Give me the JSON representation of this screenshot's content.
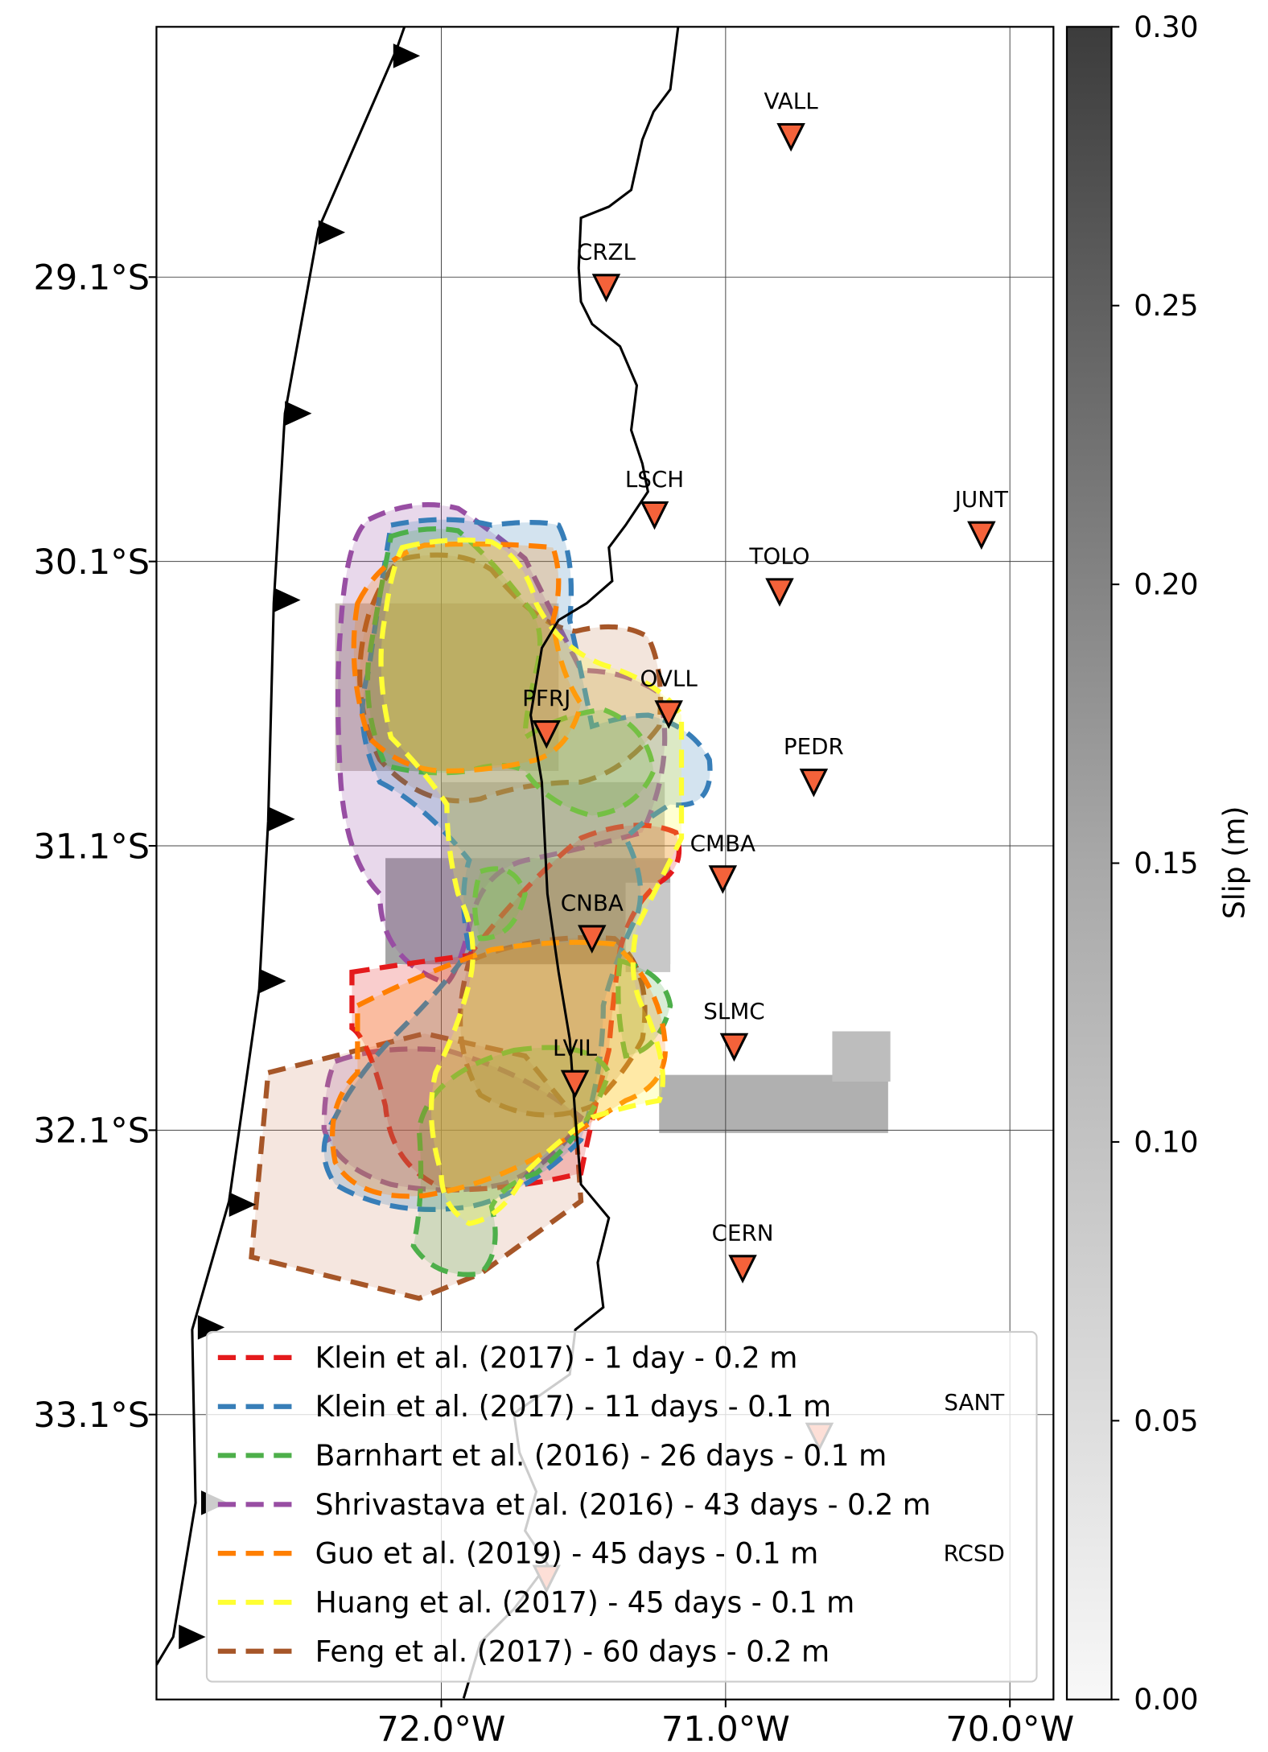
{
  "map": {
    "x_ticks": [
      {
        "lon": 72.0,
        "label": "72.0°W"
      },
      {
        "lon": 71.0,
        "label": "71.0°W"
      },
      {
        "lon": 70.0,
        "label": "70.0°W"
      }
    ],
    "y_ticks": [
      {
        "lat": 29.1,
        "label": "29.1°S"
      },
      {
        "lat": 30.1,
        "label": "30.1°S"
      },
      {
        "lat": 31.1,
        "label": "31.1°S"
      },
      {
        "lat": 32.1,
        "label": "32.1°S"
      },
      {
        "lat": 33.1,
        "label": "33.1°S"
      }
    ],
    "stations": [
      {
        "name": "VALL",
        "lon": 70.77,
        "lat": 28.61
      },
      {
        "name": "CRZL",
        "lon": 71.42,
        "lat": 29.14
      },
      {
        "name": "LSCH",
        "lon": 71.25,
        "lat": 29.94
      },
      {
        "name": "JUNT",
        "lon": 70.1,
        "lat": 30.01
      },
      {
        "name": "TOLO",
        "lon": 70.81,
        "lat": 30.21
      },
      {
        "name": "OVLL",
        "lon": 71.2,
        "lat": 30.64
      },
      {
        "name": "PFRJ",
        "lon": 71.63,
        "lat": 30.71
      },
      {
        "name": "PEDR",
        "lon": 70.69,
        "lat": 30.88
      },
      {
        "name": "CMBA",
        "lon": 71.01,
        "lat": 31.22
      },
      {
        "name": "CNBA",
        "lon": 71.47,
        "lat": 31.43
      },
      {
        "name": "SLMC",
        "lon": 70.97,
        "lat": 31.81
      },
      {
        "name": "LVIL",
        "lon": 71.53,
        "lat": 31.94
      },
      {
        "name": "CERN",
        "lon": 70.94,
        "lat": 32.59
      },
      {
        "name": "SANT",
        "lon": 70.67,
        "lat": 33.18
      },
      {
        "name": "RCSD",
        "lon": 71.63,
        "lat": 33.68
      }
    ],
    "station_color": "#f4623a"
  },
  "colorbar": {
    "label": "Slip (m)",
    "ticks": [
      "0.00",
      "0.05",
      "0.10",
      "0.15",
      "0.20",
      "0.25",
      "0.30"
    ],
    "range": [
      0,
      0.3
    ],
    "colormap": "white-to-dark-gray"
  },
  "legend": {
    "entries": [
      {
        "label": "Klein et al. (2017) - 1 day - 0.2 m",
        "color": "#e41a1c"
      },
      {
        "label": "Klein et al. (2017) - 11 days - 0.1 m",
        "color": "#377eb8"
      },
      {
        "label": "Barnhart et al. (2016) - 26 days - 0.1 m",
        "color": "#4daf4a"
      },
      {
        "label": "Shrivastava et al. (2016) - 43 days - 0.2 m",
        "color": "#984ea3"
      },
      {
        "label": "Guo et al. (2019) - 45 days - 0.1 m",
        "color": "#ff7f00"
      },
      {
        "label": "Huang et al. (2017) - 45 days - 0.1 m",
        "color": "#ffff33"
      },
      {
        "label": "Feng et al. (2017) - 60 days - 0.2 m",
        "color": "#a65628"
      }
    ]
  }
}
